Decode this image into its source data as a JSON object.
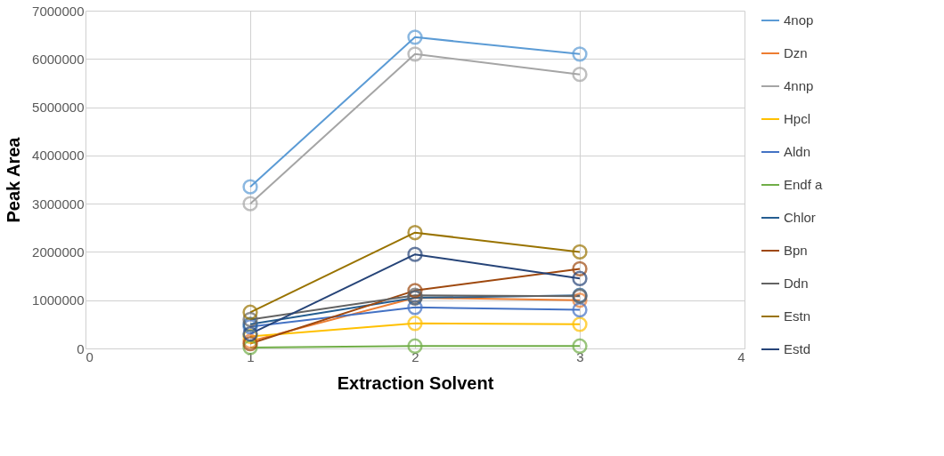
{
  "chart_data": {
    "type": "line",
    "xlabel": "Extraction Solvent",
    "ylabel": "Peak Area",
    "x": [
      1,
      2,
      3
    ],
    "xlim": [
      0,
      4
    ],
    "xticks": [
      0,
      1,
      2,
      3,
      4
    ],
    "ylim": [
      0,
      7000000
    ],
    "yticks": [
      0,
      1000000,
      2000000,
      3000000,
      4000000,
      5000000,
      6000000,
      7000000
    ],
    "grid": true,
    "legend": "right",
    "marker": "circle",
    "line_style": "solid",
    "series": [
      {
        "name": "4nop",
        "color": "#5b9bd5",
        "values": [
          3350000,
          6450000,
          6100000
        ]
      },
      {
        "name": "Dzn",
        "color": "#ed7d31",
        "values": [
          150000,
          1050000,
          1000000
        ]
      },
      {
        "name": "4nnp",
        "color": "#a5a5a5",
        "values": [
          3000000,
          6100000,
          5680000
        ]
      },
      {
        "name": "Hpcl",
        "color": "#ffc000",
        "values": [
          250000,
          520000,
          500000
        ]
      },
      {
        "name": "Aldn",
        "color": "#4472c4",
        "values": [
          450000,
          850000,
          800000
        ]
      },
      {
        "name": "Endf a",
        "color": "#70ad47",
        "values": [
          20000,
          50000,
          50000
        ]
      },
      {
        "name": "Chlor",
        "color": "#255e91",
        "values": [
          500000,
          1050000,
          1100000
        ]
      },
      {
        "name": "Bpn",
        "color": "#9e480e",
        "values": [
          100000,
          1200000,
          1650000
        ]
      },
      {
        "name": "Ddn",
        "color": "#636363",
        "values": [
          600000,
          1100000,
          1080000
        ]
      },
      {
        "name": "Estn",
        "color": "#997300",
        "values": [
          750000,
          2400000,
          2000000
        ]
      },
      {
        "name": "Estd",
        "color": "#264478",
        "values": [
          300000,
          1950000,
          1450000
        ]
      }
    ]
  }
}
